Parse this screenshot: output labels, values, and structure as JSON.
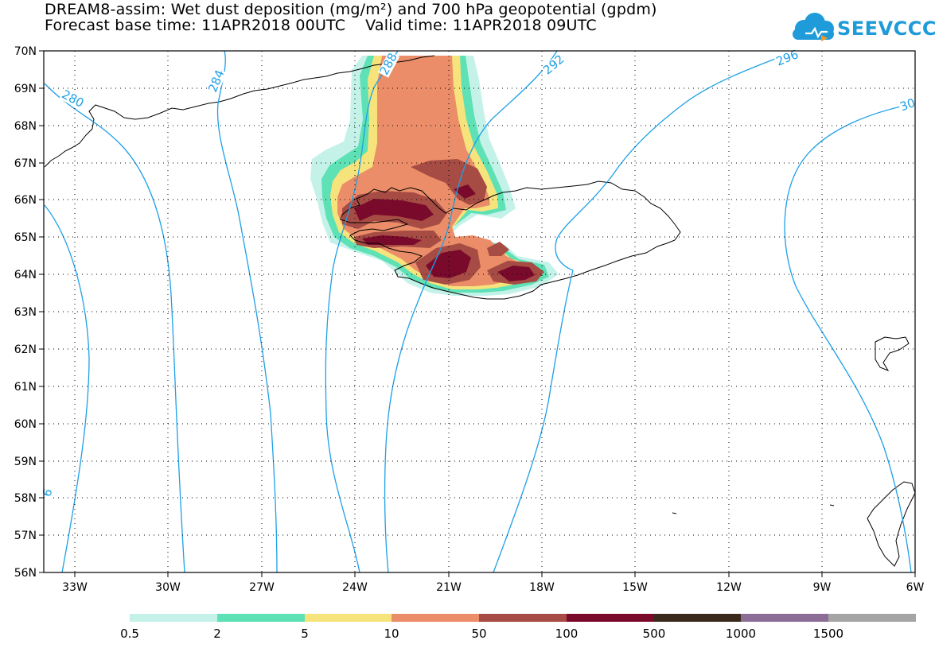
{
  "title": {
    "line1": "DREAM8-assim: Wet dust deposition (mg/m²) and 700 hPa geopotential (gpdm)",
    "line2": "Forecast base time: 11APR2018 00UTC    Valid time: 11APR2018 09UTC"
  },
  "logo": {
    "text": "SEEVCCC",
    "icon": "cloud-logo-icon",
    "color": "#1e9bd8"
  },
  "map": {
    "lat_labels": [
      "70N",
      "69N",
      "68N",
      "67N",
      "66N",
      "65N",
      "64N",
      "63N",
      "62N",
      "61N",
      "60N",
      "59N",
      "58N",
      "57N",
      "56N"
    ],
    "lon_labels": [
      "33W",
      "30W",
      "27W",
      "24W",
      "21W",
      "18W",
      "15W",
      "12W",
      "9W",
      "6W"
    ],
    "contour_labels": [
      "280",
      "284",
      "288",
      "292",
      "296",
      "30",
      "6"
    ],
    "contour_color": "#1ea0e6",
    "coast_color": "#000000"
  },
  "legend": {
    "colors": [
      "#c4f2e9",
      "#5ee1b5",
      "#f7e37c",
      "#ea8d68",
      "#a64c44",
      "#7a0a2c",
      "#3b2a1c",
      "#8c6d96",
      "#a5a5a5"
    ],
    "labels": [
      "0.5",
      "2",
      "5",
      "10",
      "50",
      "100",
      "500",
      "1000",
      "1500"
    ]
  }
}
